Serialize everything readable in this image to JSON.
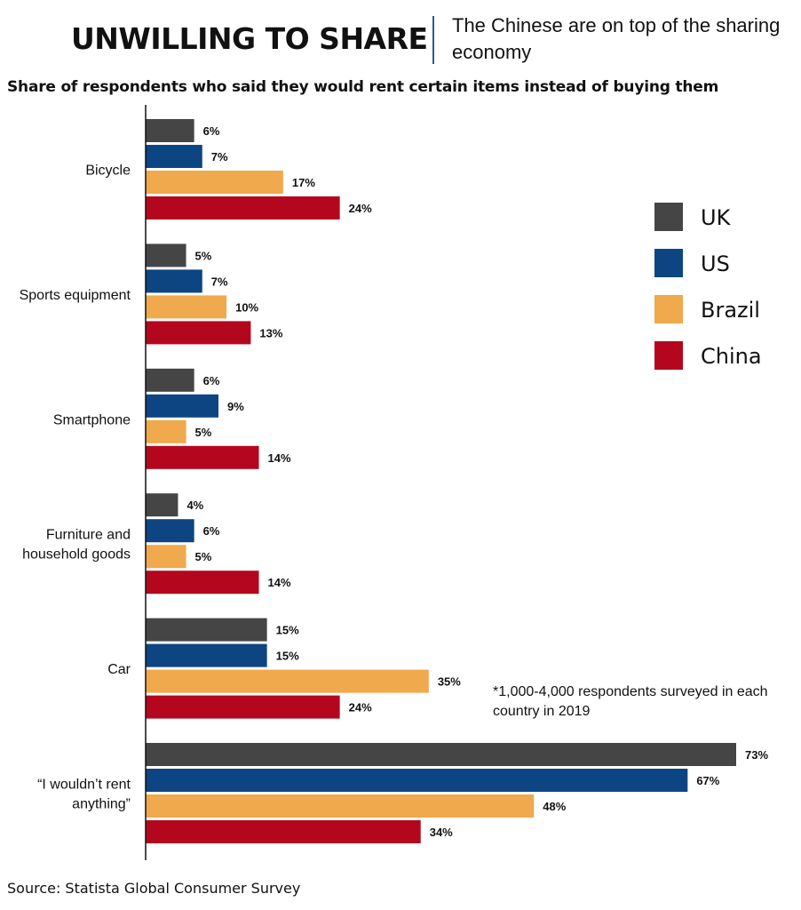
{
  "header": {
    "headline": "UNWILLING TO SHARE",
    "deck": "The Chinese are on top of the sharing economy"
  },
  "footer": {
    "note": "*1,000-4,000 respondents surveyed in each country in 2019",
    "source": "Source: Statista Global Consumer Survey"
  },
  "colors": {
    "UK": "#454545",
    "US": "#0c4582",
    "Brazil": "#f0a94c",
    "China": "#b4071e"
  },
  "chart_data": {
    "type": "bar",
    "orientation": "horizontal",
    "title": "Share of respondents who said they would rent certain items instead of buying them",
    "categories": [
      "Bicycle",
      "Sports equipment",
      "Smartphone",
      "Furniture and household goods",
      "Car",
      "“I wouldn’t rent anything”"
    ],
    "category_lines": [
      [
        "Bicycle"
      ],
      [
        "Sports equipment"
      ],
      [
        "Smartphone"
      ],
      [
        "Furniture and",
        "household goods"
      ],
      [
        "Car"
      ],
      [
        "“I wouldn’t rent",
        "anything”"
      ]
    ],
    "series": [
      {
        "name": "UK",
        "values": [
          6,
          5,
          6,
          4,
          15,
          73
        ]
      },
      {
        "name": "US",
        "values": [
          7,
          7,
          9,
          6,
          15,
          67
        ]
      },
      {
        "name": "Brazil",
        "values": [
          17,
          10,
          5,
          5,
          35,
          48
        ]
      },
      {
        "name": "China",
        "values": [
          24,
          13,
          14,
          14,
          24,
          34
        ]
      }
    ],
    "unit": "%",
    "xlim": [
      0,
      73
    ],
    "grid": false,
    "legend_position": "right"
  }
}
